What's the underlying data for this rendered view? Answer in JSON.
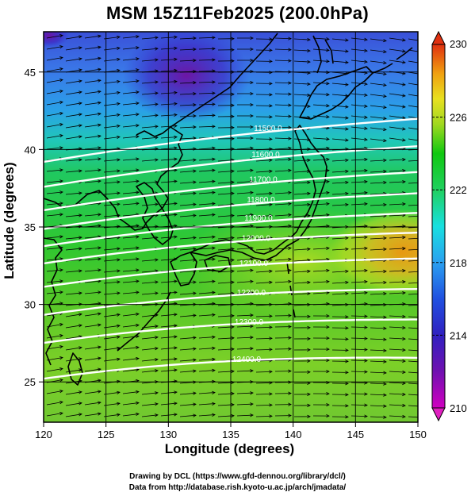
{
  "title": "MSM 15Z11Feb2025 (200.0hPa)",
  "xlabel": "Longitude (degrees)",
  "ylabel": "Latitude  (degrees)",
  "credit_line1": "Drawing by DCL (https://www.gfd-dennou.org/library/dcl/)",
  "credit_line2": "Data from http://database.rish.kyoto-u.ac.jp/arch/jmadata/",
  "map": {
    "lon_range": [
      120,
      150
    ],
    "lat_range": [
      22.4,
      47.6
    ],
    "lon_ticks": [
      120,
      125,
      130,
      135,
      140,
      145,
      150
    ],
    "lat_ticks": [
      25,
      30,
      35,
      40,
      45
    ],
    "colorbar": {
      "min": 210,
      "max": 230,
      "tick_labels": [
        230,
        226,
        222,
        218,
        214,
        210
      ],
      "colors_low_to_high": [
        "#d000c0",
        "#5010b0",
        "#2040d0",
        "#2a90f0",
        "#18d8e0",
        "#30d070",
        "#10c810",
        "#70d020",
        "#d0e020",
        "#f0c010",
        "#f08010",
        "#e03010"
      ]
    },
    "contours": [
      {
        "label": "11500.0",
        "lat_at_140": 41.3
      },
      {
        "label": "11600.0",
        "lat_at_140": 39.6
      },
      {
        "label": "11700.0",
        "lat_at_140": 38.0
      },
      {
        "label": "11800.0",
        "lat_at_140": 36.7
      },
      {
        "label": "11900.0",
        "lat_at_140": 35.5
      },
      {
        "label": "12000.0",
        "lat_at_140": 34.3
      },
      {
        "label": "12100.0",
        "lat_at_140": 32.7
      },
      {
        "label": "12200.0",
        "lat_at_140": 30.8
      },
      {
        "label": "12300.0",
        "lat_at_140": 28.9
      },
      {
        "label": "12400.0",
        "lat_at_140": 26.5
      }
    ],
    "wind_vectors": "westerly"
  }
}
